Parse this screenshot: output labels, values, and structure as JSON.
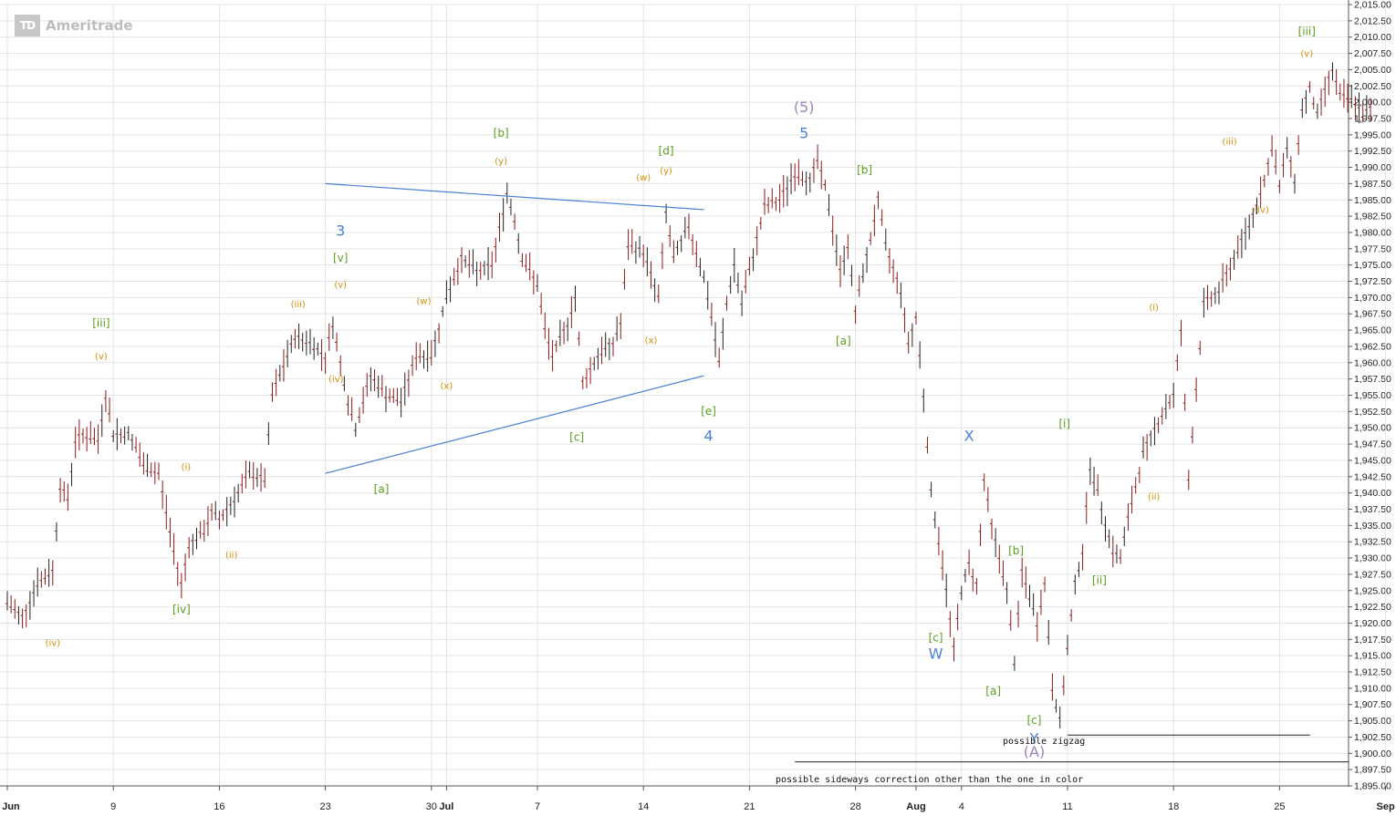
{
  "watermark": {
    "logo_text": "TD",
    "brand": "Ameritrade"
  },
  "colors": {
    "candles": "#8b1a1a",
    "blue": "#4a7fd6",
    "green": "#5aa01e",
    "orange": "#d4900a",
    "purple": "#9a84c0",
    "grid": "#e4e4e4",
    "axis": "#555555"
  },
  "chart_data": {
    "type": "line",
    "symbol": "",
    "y_axis": {
      "side": "right",
      "ylim": [
        1895.0,
        2015.0
      ],
      "tick_step": 2.5,
      "tick_labels": [
        "2,015.00",
        "2,012.50",
        "2,010.00",
        "2,007.50",
        "2,005.00",
        "2,002.50",
        "2,000.00",
        "1,997.50",
        "1,995.00",
        "1,992.50",
        "1,990.00",
        "1,987.50",
        "1,985.00",
        "1,982.50",
        "1,980.00",
        "1,977.50",
        "1,975.00",
        "1,972.50",
        "1,970.00",
        "1,967.50",
        "1,965.00",
        "1,962.50",
        "1,960.00",
        "1,957.50",
        "1,955.00",
        "1,952.50",
        "1,950.00",
        "1,947.50",
        "1,945.00",
        "1,942.50",
        "1,940.00",
        "1,937.50",
        "1,935.00",
        "1,932.50",
        "1,930.00",
        "1,927.50",
        "1,925.00",
        "1,922.50",
        "1,920.00",
        "1,917.50",
        "1,915.00",
        "1,912.50",
        "1,910.00",
        "1,907.50",
        "1,905.00",
        "1,902.50",
        "1,900.00",
        "1,897.50",
        "1,895.00"
      ]
    },
    "x_axis": {
      "unit": "days since Jun 2",
      "xlim": [
        0,
        91
      ],
      "ticks": [
        {
          "label": "Jun",
          "day": 0,
          "bold": true
        },
        {
          "label": "9",
          "day": 7,
          "bold": false
        },
        {
          "label": "16",
          "day": 14,
          "bold": false
        },
        {
          "label": "23",
          "day": 21,
          "bold": false
        },
        {
          "label": "30",
          "day": 28,
          "bold": false
        },
        {
          "label": "Jul",
          "day": 29,
          "bold": true
        },
        {
          "label": "7",
          "day": 35,
          "bold": false
        },
        {
          "label": "14",
          "day": 42,
          "bold": false
        },
        {
          "label": "21",
          "day": 49,
          "bold": false
        },
        {
          "label": "28",
          "day": 56,
          "bold": false
        },
        {
          "label": "Aug",
          "day": 60,
          "bold": true
        },
        {
          "label": "4",
          "day": 63,
          "bold": false
        },
        {
          "label": "11",
          "day": 70,
          "bold": false
        },
        {
          "label": "18",
          "day": 77,
          "bold": false
        },
        {
          "label": "25",
          "day": 84,
          "bold": false
        },
        {
          "label": "Sep",
          "day": 91,
          "bold": true
        }
      ]
    },
    "price_path": [
      [
        0,
        1923
      ],
      [
        1,
        1921
      ],
      [
        2,
        1926
      ],
      [
        3,
        1928
      ],
      [
        3.5,
        1941
      ],
      [
        4,
        1939
      ],
      [
        4.5,
        1948
      ],
      [
        5,
        1949
      ],
      [
        6,
        1948
      ],
      [
        6.5,
        1955
      ],
      [
        7,
        1949
      ],
      [
        8,
        1949
      ],
      [
        8.5,
        1947
      ],
      [
        9,
        1944
      ],
      [
        10,
        1943
      ],
      [
        10.5,
        1937
      ],
      [
        11,
        1931
      ],
      [
        11.5,
        1926
      ],
      [
        12,
        1932
      ],
      [
        13,
        1934
      ],
      [
        13.5,
        1937
      ],
      [
        14,
        1936
      ],
      [
        15,
        1939
      ],
      [
        16,
        1943
      ],
      [
        17,
        1942
      ],
      [
        17.5,
        1955
      ],
      [
        18,
        1958
      ],
      [
        19,
        1964
      ],
      [
        20,
        1963
      ],
      [
        21,
        1961
      ],
      [
        21.5,
        1966
      ],
      [
        22,
        1960
      ],
      [
        22.5,
        1954
      ],
      [
        23,
        1950
      ],
      [
        24,
        1958
      ],
      [
        25,
        1955
      ],
      [
        26,
        1954
      ],
      [
        27,
        1961
      ],
      [
        28,
        1961
      ],
      [
        29,
        1970
      ],
      [
        30,
        1976
      ],
      [
        31,
        1974
      ],
      [
        32,
        1975
      ],
      [
        33,
        1986
      ],
      [
        33.5,
        1982
      ],
      [
        34,
        1976
      ],
      [
        35,
        1972
      ],
      [
        35.5,
        1965
      ],
      [
        36,
        1961
      ],
      [
        37,
        1966
      ],
      [
        37.5,
        1970
      ],
      [
        38,
        1957
      ],
      [
        39,
        1961
      ],
      [
        40,
        1963
      ],
      [
        40.5,
        1966
      ],
      [
        41,
        1978
      ],
      [
        42,
        1977
      ],
      [
        43,
        1970
      ],
      [
        43.5,
        1983
      ],
      [
        44,
        1976
      ],
      [
        45,
        1981
      ],
      [
        46,
        1973
      ],
      [
        46.5,
        1967
      ],
      [
        47,
        1960
      ],
      [
        47.5,
        1969
      ],
      [
        48,
        1975
      ],
      [
        48.5,
        1969
      ],
      [
        49,
        1974
      ],
      [
        50,
        1984
      ],
      [
        51,
        1985
      ],
      [
        52,
        1989
      ],
      [
        53,
        1988
      ],
      [
        53.5,
        1991
      ],
      [
        54,
        1987
      ],
      [
        55,
        1974
      ],
      [
        55.5,
        1978
      ],
      [
        56,
        1968
      ],
      [
        57,
        1979
      ],
      [
        57.5,
        1985
      ],
      [
        58,
        1978
      ],
      [
        59,
        1971
      ],
      [
        59.5,
        1963
      ],
      [
        60,
        1967
      ],
      [
        60.5,
        1955
      ],
      [
        61,
        1940
      ],
      [
        62,
        1925
      ],
      [
        62.5,
        1916
      ],
      [
        63,
        1925
      ],
      [
        63.5,
        1929
      ],
      [
        64,
        1926
      ],
      [
        64.5,
        1942
      ],
      [
        65,
        1935
      ],
      [
        66,
        1925
      ],
      [
        66.5,
        1914
      ],
      [
        67,
        1928
      ],
      [
        68,
        1920
      ],
      [
        68.5,
        1926
      ],
      [
        69,
        1910
      ],
      [
        69.5,
        1905
      ],
      [
        70,
        1916
      ],
      [
        70.5,
        1926
      ],
      [
        71,
        1931
      ],
      [
        71.5,
        1944
      ],
      [
        72,
        1940
      ],
      [
        73,
        1931
      ],
      [
        73.5,
        1930
      ],
      [
        74,
        1936
      ],
      [
        75,
        1946
      ],
      [
        76,
        1951
      ],
      [
        77,
        1955
      ],
      [
        77.5,
        1965
      ],
      [
        78,
        1942
      ],
      [
        78.5,
        1956
      ],
      [
        79,
        1969
      ],
      [
        80,
        1971
      ],
      [
        81,
        1976
      ],
      [
        82,
        1981
      ],
      [
        83,
        1988
      ],
      [
        83.5,
        1993
      ],
      [
        84,
        1987
      ],
      [
        84.5,
        1993
      ],
      [
        85,
        1988
      ],
      [
        85.5,
        1999
      ],
      [
        86,
        2002
      ],
      [
        86.5,
        1998
      ],
      [
        87,
        2002
      ],
      [
        87.5,
        2005
      ],
      [
        88,
        2001
      ],
      [
        89,
        2000
      ],
      [
        89.5,
        1998
      ],
      [
        90,
        1999
      ]
    ],
    "trendlines": [
      {
        "color": "blue",
        "from": [
          21,
          1987.5
        ],
        "to": [
          46,
          1983.5
        ]
      },
      {
        "color": "blue",
        "from": [
          21,
          1943
        ],
        "to": [
          46,
          1958
        ]
      }
    ],
    "horizontal_lines": [
      {
        "y": 1902.8,
        "x_from": 70,
        "x_to": 86,
        "label": "possible zigzag"
      },
      {
        "y": 1898.7,
        "x_from": 52,
        "x_to": 91.5,
        "label": "possible sideways correction other than the one in color"
      }
    ],
    "wave_labels": [
      {
        "text": "(iv)",
        "day": 3,
        "price": 1916.5,
        "color": "orange",
        "size": 10
      },
      {
        "text": "[iii]",
        "day": 6.2,
        "price": 1965.5,
        "color": "green",
        "size": 12
      },
      {
        "text": "(v)",
        "day": 6.2,
        "price": 1960.5,
        "color": "orange",
        "size": 10
      },
      {
        "text": "(i)",
        "day": 11.8,
        "price": 1943.5,
        "color": "orange",
        "size": 10
      },
      {
        "text": "(ii)",
        "day": 14.8,
        "price": 1930.0,
        "color": "orange",
        "size": 10
      },
      {
        "text": "[iv]",
        "day": 11.5,
        "price": 1921.5,
        "color": "green",
        "size": 12
      },
      {
        "text": "(iii)",
        "day": 19.2,
        "price": 1968.5,
        "color": "orange",
        "size": 10
      },
      {
        "text": "3",
        "day": 22.0,
        "price": 1979.5,
        "color": "blue",
        "size": 16
      },
      {
        "text": "[v]",
        "day": 22.0,
        "price": 1975.5,
        "color": "green",
        "size": 12
      },
      {
        "text": "(v)",
        "day": 22.0,
        "price": 1971.5,
        "color": "orange",
        "size": 10
      },
      {
        "text": "(iv)",
        "day": 21.7,
        "price": 1957.0,
        "color": "orange",
        "size": 10
      },
      {
        "text": "[a]",
        "day": 24.7,
        "price": 1940.0,
        "color": "green",
        "size": 12
      },
      {
        "text": "(w)",
        "day": 27.5,
        "price": 1969.0,
        "color": "orange",
        "size": 10
      },
      {
        "text": "(x)",
        "day": 29.0,
        "price": 1956.0,
        "color": "orange",
        "size": 10
      },
      {
        "text": "[b]",
        "day": 32.6,
        "price": 1994.7,
        "color": "green",
        "size": 12
      },
      {
        "text": "(y)",
        "day": 32.6,
        "price": 1990.5,
        "color": "orange",
        "size": 10
      },
      {
        "text": "[c]",
        "day": 37.6,
        "price": 1948.0,
        "color": "green",
        "size": 12
      },
      {
        "text": "(w)",
        "day": 42.0,
        "price": 1988.0,
        "color": "orange",
        "size": 10
      },
      {
        "text": "(y)",
        "day": 43.5,
        "price": 1989.0,
        "color": "orange",
        "size": 10
      },
      {
        "text": "[d]",
        "day": 43.5,
        "price": 1992.0,
        "color": "green",
        "size": 12
      },
      {
        "text": "(x)",
        "day": 42.5,
        "price": 1963.0,
        "color": "orange",
        "size": 10
      },
      {
        "text": "[e]",
        "day": 46.3,
        "price": 1952.0,
        "color": "green",
        "size": 12
      },
      {
        "text": "4",
        "day": 46.3,
        "price": 1948.0,
        "color": "blue",
        "size": 16
      },
      {
        "text": "(5)",
        "day": 52.6,
        "price": 1998.5,
        "color": "purple",
        "size": 16
      },
      {
        "text": "5",
        "day": 52.6,
        "price": 1994.5,
        "color": "blue",
        "size": 16
      },
      {
        "text": "[b]",
        "day": 56.6,
        "price": 1989.0,
        "color": "green",
        "size": 12
      },
      {
        "text": "[a]",
        "day": 55.2,
        "price": 1962.8,
        "color": "green",
        "size": 12
      },
      {
        "text": "[c]",
        "day": 61.3,
        "price": 1917.2,
        "color": "green",
        "size": 12
      },
      {
        "text": "W",
        "day": 61.3,
        "price": 1914.5,
        "color": "blue",
        "size": 16
      },
      {
        "text": "X",
        "day": 63.5,
        "price": 1948.0,
        "color": "blue",
        "size": 16
      },
      {
        "text": "[b]",
        "day": 66.6,
        "price": 1930.6,
        "color": "green",
        "size": 12
      },
      {
        "text": "[a]",
        "day": 65.1,
        "price": 1909.0,
        "color": "green",
        "size": 12
      },
      {
        "text": "[c]",
        "day": 67.8,
        "price": 1904.5,
        "color": "green",
        "size": 12
      },
      {
        "text": "Y",
        "day": 67.8,
        "price": 1901.5,
        "color": "blue",
        "size": 16
      },
      {
        "text": "(A)",
        "day": 67.8,
        "price": 1899.5,
        "color": "purple",
        "size": 16
      },
      {
        "text": "[i]",
        "day": 69.8,
        "price": 1950.0,
        "color": "green",
        "size": 12
      },
      {
        "text": "[ii]",
        "day": 72.1,
        "price": 1926.0,
        "color": "green",
        "size": 12
      },
      {
        "text": "(i)",
        "day": 75.7,
        "price": 1968.0,
        "color": "orange",
        "size": 10
      },
      {
        "text": "(ii)",
        "day": 75.7,
        "price": 1939.0,
        "color": "orange",
        "size": 10
      },
      {
        "text": "(iii)",
        "day": 80.7,
        "price": 1993.5,
        "color": "orange",
        "size": 10
      },
      {
        "text": "(iv)",
        "day": 82.8,
        "price": 1983.0,
        "color": "orange",
        "size": 10
      },
      {
        "text": "[iii]",
        "day": 85.8,
        "price": 2010.3,
        "color": "green",
        "size": 12
      },
      {
        "text": "(v)",
        "day": 85.8,
        "price": 2007.0,
        "color": "orange",
        "size": 10
      }
    ]
  }
}
